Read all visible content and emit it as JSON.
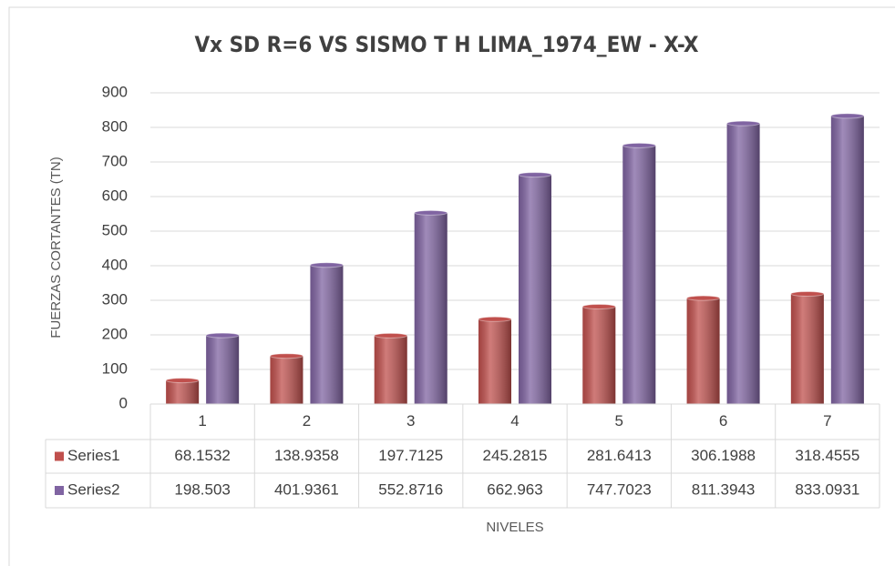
{
  "chart_data": {
    "type": "bar",
    "title": "Vx SD R=6 VS SISMO T H LIMA_1974_EW - X-X",
    "y_label": "FUERZAS CORTANTES (TN)",
    "x_label": "NIVELES",
    "categories": [
      "1",
      "2",
      "3",
      "4",
      "5",
      "6",
      "7"
    ],
    "series": [
      {
        "name": "Series1",
        "color": "#c0504d",
        "values": [
          68.1532,
          138.9358,
          197.7125,
          245.2815,
          281.6413,
          306.1988,
          318.4555
        ]
      },
      {
        "name": "Series2",
        "color": "#8064a2",
        "values": [
          198.503,
          401.9361,
          552.8716,
          662.963,
          747.7023,
          811.3943,
          833.0931
        ]
      }
    ],
    "ylim": [
      0,
      900
    ],
    "yticks": [
      0,
      100,
      200,
      300,
      400,
      500,
      600,
      700,
      800,
      900
    ],
    "grid": true,
    "data_table": true
  }
}
